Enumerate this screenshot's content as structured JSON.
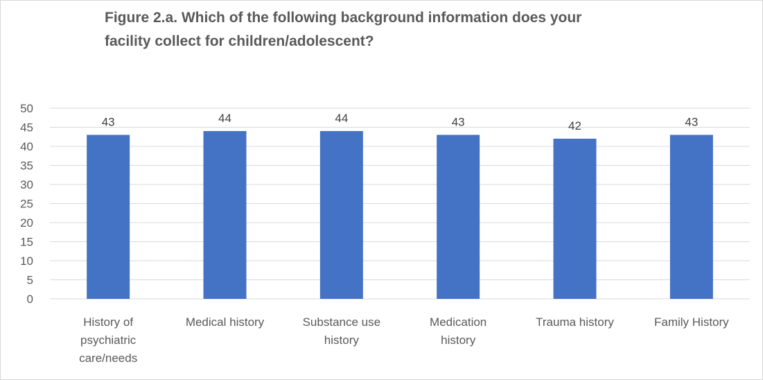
{
  "chart_data": {
    "type": "bar",
    "title_lines": [
      "Figure 2.a. Which of the following background information does your",
      "facility collect for children/adolescent?"
    ],
    "categories": [
      "History of psychiatric care/needs",
      "Medical history",
      "Substance use history",
      "Medication history",
      "Trauma history",
      "Family History"
    ],
    "category_lines": [
      [
        "History of",
        "psychiatric",
        "care/needs"
      ],
      [
        "Medical history"
      ],
      [
        "Substance use",
        "history"
      ],
      [
        "Medication",
        "history"
      ],
      [
        "Trauma history"
      ],
      [
        "Family History"
      ]
    ],
    "values": [
      43,
      44,
      44,
      43,
      42,
      43
    ],
    "ylim": [
      0,
      50
    ],
    "yticks": [
      0,
      5,
      10,
      15,
      20,
      25,
      30,
      35,
      40,
      45,
      50
    ],
    "grid": true,
    "data_labels": true,
    "bar_color": "#4472C4",
    "grid_color": "#d9d9d9"
  }
}
